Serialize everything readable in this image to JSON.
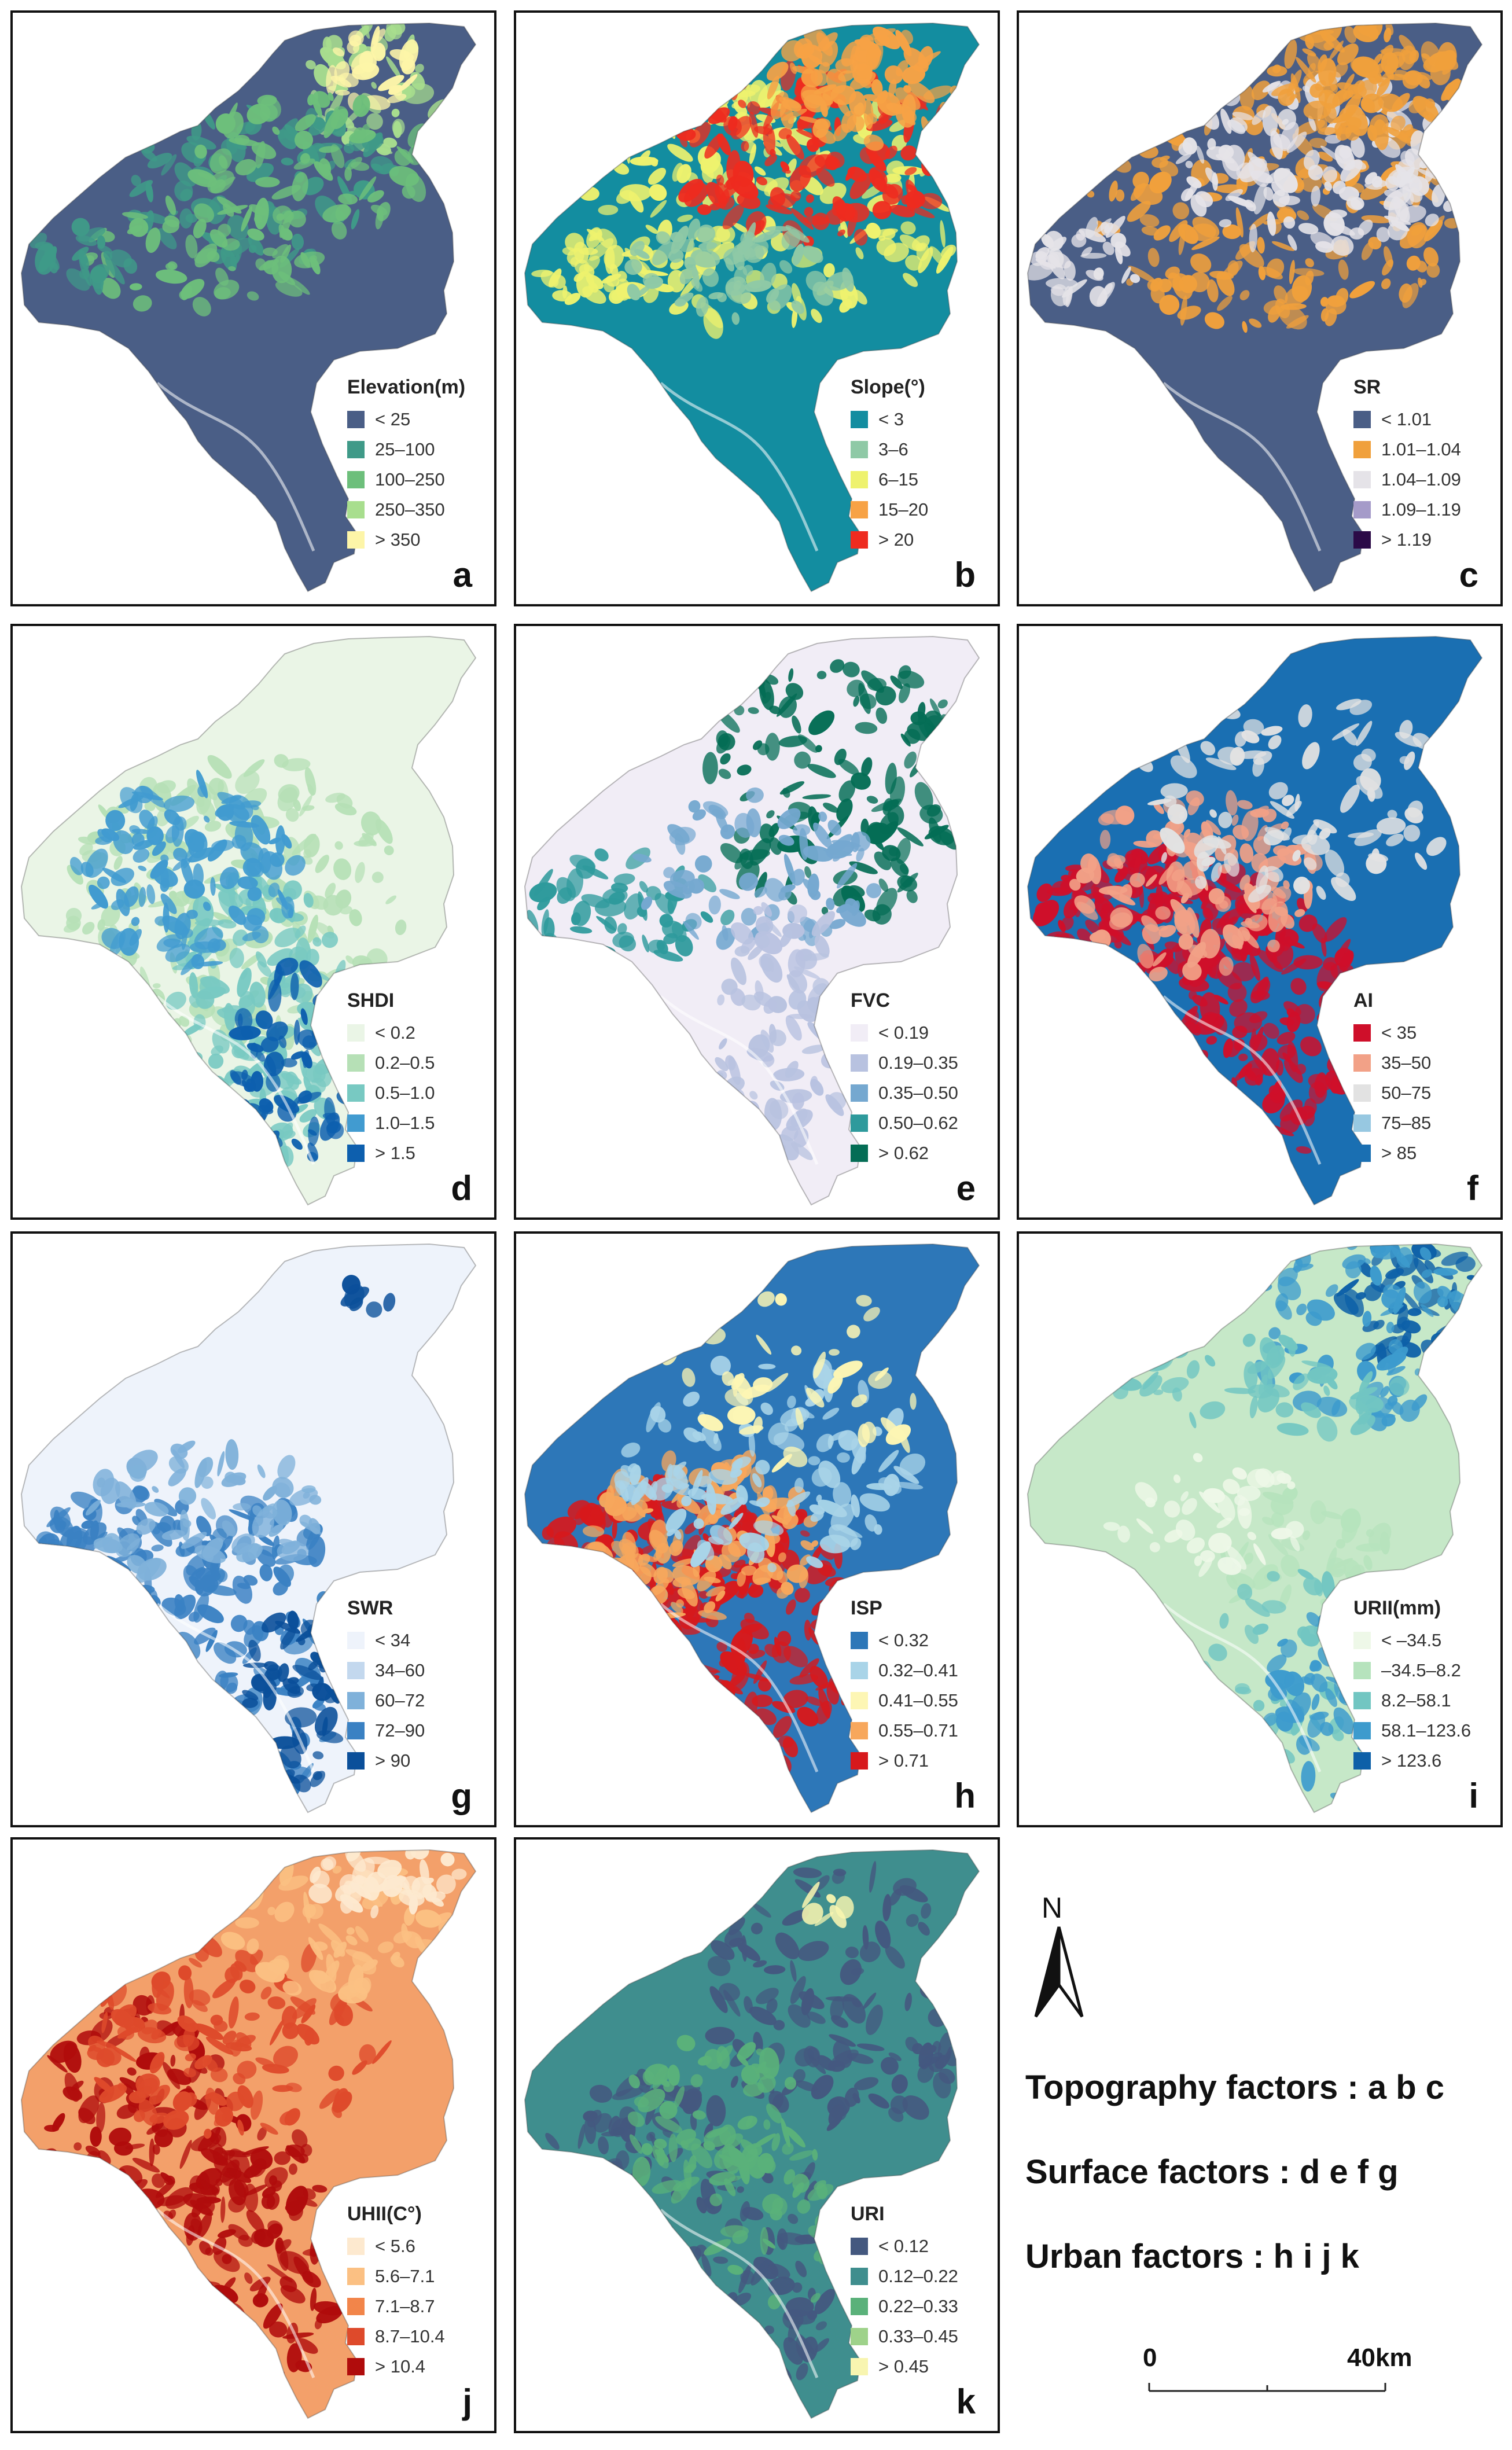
{
  "panels": [
    {
      "id": "a",
      "letter": "a",
      "legend_title": "Elevation(m)",
      "base_color": "#4a5e86",
      "classes": [
        {
          "label": "< 25",
          "color": "#4a5e86"
        },
        {
          "label": "25–100",
          "color": "#3f9a88"
        },
        {
          "label": "100–250",
          "color": "#6dbf7b"
        },
        {
          "label": "250–350",
          "color": "#a8de8e"
        },
        {
          "label": "> 350",
          "color": "#fdf5a8"
        }
      ]
    },
    {
      "id": "b",
      "letter": "b",
      "legend_title": "Slope(°)",
      "base_color": "#138da0",
      "classes": [
        {
          "label": "< 3",
          "color": "#138da0"
        },
        {
          "label": "3–6",
          "color": "#8fc9a6"
        },
        {
          "label": "6–15",
          "color": "#eef26e"
        },
        {
          "label": "15–20",
          "color": "#f7a245"
        },
        {
          "label": "> 20",
          "color": "#ee2b1f"
        }
      ]
    },
    {
      "id": "c",
      "letter": "c",
      "legend_title": "SR",
      "base_color": "#4a5e86",
      "classes": [
        {
          "label": "< 1.01",
          "color": "#4a5e86"
        },
        {
          "label": "1.01–1.04",
          "color": "#f0a03c"
        },
        {
          "label": "1.04–1.09",
          "color": "#e5e3e8"
        },
        {
          "label": "1.09–1.19",
          "color": "#a59bc9"
        },
        {
          "label": "> 1.19",
          "color": "#2b0a47"
        }
      ]
    },
    {
      "id": "d",
      "letter": "d",
      "legend_title": "SHDI",
      "base_color": "#eaf5e6",
      "classes": [
        {
          "label": "< 0.2",
          "color": "#eaf5e6"
        },
        {
          "label": "0.2–0.5",
          "color": "#b6e0b6"
        },
        {
          "label": "0.5–1.0",
          "color": "#78c9c2"
        },
        {
          "label": "1.0–1.5",
          "color": "#419bd0"
        },
        {
          "label": "> 1.5",
          "color": "#0d5fae"
        }
      ]
    },
    {
      "id": "e",
      "letter": "e",
      "legend_title": "FVC",
      "base_color": "#f1edf6",
      "classes": [
        {
          "label": "< 0.19",
          "color": "#f1edf6"
        },
        {
          "label": "0.19–0.35",
          "color": "#b8c2e0"
        },
        {
          "label": "0.35–0.50",
          "color": "#75a8d0"
        },
        {
          "label": "0.50–0.62",
          "color": "#2e9a9c"
        },
        {
          "label": "> 0.62",
          "color": "#046d55"
        }
      ]
    },
    {
      "id": "f",
      "letter": "f",
      "legend_title": "AI",
      "base_color": "#1a6fb2",
      "classes": [
        {
          "label": "< 35",
          "color": "#cf0f2a"
        },
        {
          "label": "35–50",
          "color": "#f2a187"
        },
        {
          "label": "50–75",
          "color": "#e2e2e2"
        },
        {
          "label": "75–85",
          "color": "#97c8e1"
        },
        {
          "label": "> 85",
          "color": "#1a6fb2"
        }
      ]
    },
    {
      "id": "g",
      "letter": "g",
      "legend_title": "SWR",
      "base_color": "#eef3fb",
      "classes": [
        {
          "label": "< 34",
          "color": "#eef3fb"
        },
        {
          "label": "34–60",
          "color": "#c3d8ee"
        },
        {
          "label": "60–72",
          "color": "#7fb1da"
        },
        {
          "label": "72–90",
          "color": "#3a81c3"
        },
        {
          "label": "> 90",
          "color": "#0a4f9a"
        }
      ]
    },
    {
      "id": "h",
      "letter": "h",
      "legend_title": "ISP",
      "base_color": "#2d77b8",
      "classes": [
        {
          "label": "< 0.32",
          "color": "#2d77b8"
        },
        {
          "label": "0.32–0.41",
          "color": "#a9d4e8"
        },
        {
          "label": "0.41–0.55",
          "color": "#fdf6b4"
        },
        {
          "label": "0.55–0.71",
          "color": "#f7a75c"
        },
        {
          "label": "> 0.71",
          "color": "#d7191c"
        }
      ]
    },
    {
      "id": "i",
      "letter": "i",
      "legend_title": "URII(mm)",
      "base_color": "#c6e8c8",
      "classes": [
        {
          "label": "< –34.5",
          "color": "#eef8e8"
        },
        {
          "label": "–34.5–8.2",
          "color": "#b6e3bd"
        },
        {
          "label": "8.2–58.1",
          "color": "#72c6c2"
        },
        {
          "label": "58.1–123.6",
          "color": "#3d9bcd"
        },
        {
          "label": "> 123.6",
          "color": "#0d60a8"
        }
      ]
    },
    {
      "id": "j",
      "letter": "j",
      "legend_title": "UHII(C°)",
      "base_color": "#f3a06a",
      "classes": [
        {
          "label": "< 5.6",
          "color": "#fde9cf"
        },
        {
          "label": "5.6–7.1",
          "color": "#fbc083"
        },
        {
          "label": "7.1–8.7",
          "color": "#f2854a"
        },
        {
          "label": "8.7–10.4",
          "color": "#de4a2b"
        },
        {
          "label": "> 10.4",
          "color": "#b00c0c"
        }
      ]
    },
    {
      "id": "k",
      "letter": "k",
      "legend_title": "URI",
      "base_color": "#3f8e8e",
      "classes": [
        {
          "label": "< 0.12",
          "color": "#44587f"
        },
        {
          "label": "0.12–0.22",
          "color": "#3f8e8e"
        },
        {
          "label": "0.22–0.33",
          "color": "#5ab17a"
        },
        {
          "label": "0.33–0.45",
          "color": "#9ed28a"
        },
        {
          "label": "> 0.45",
          "color": "#f8f5b0"
        }
      ]
    }
  ],
  "north_arrow": {
    "label": "N"
  },
  "factors": [
    {
      "label": "Topography factors : a b c"
    },
    {
      "label": "Surface factors : d e f g"
    },
    {
      "label": "Urban factors : h i j k"
    }
  ],
  "scale_bar": {
    "start_label": "0",
    "end_label": "40km"
  }
}
